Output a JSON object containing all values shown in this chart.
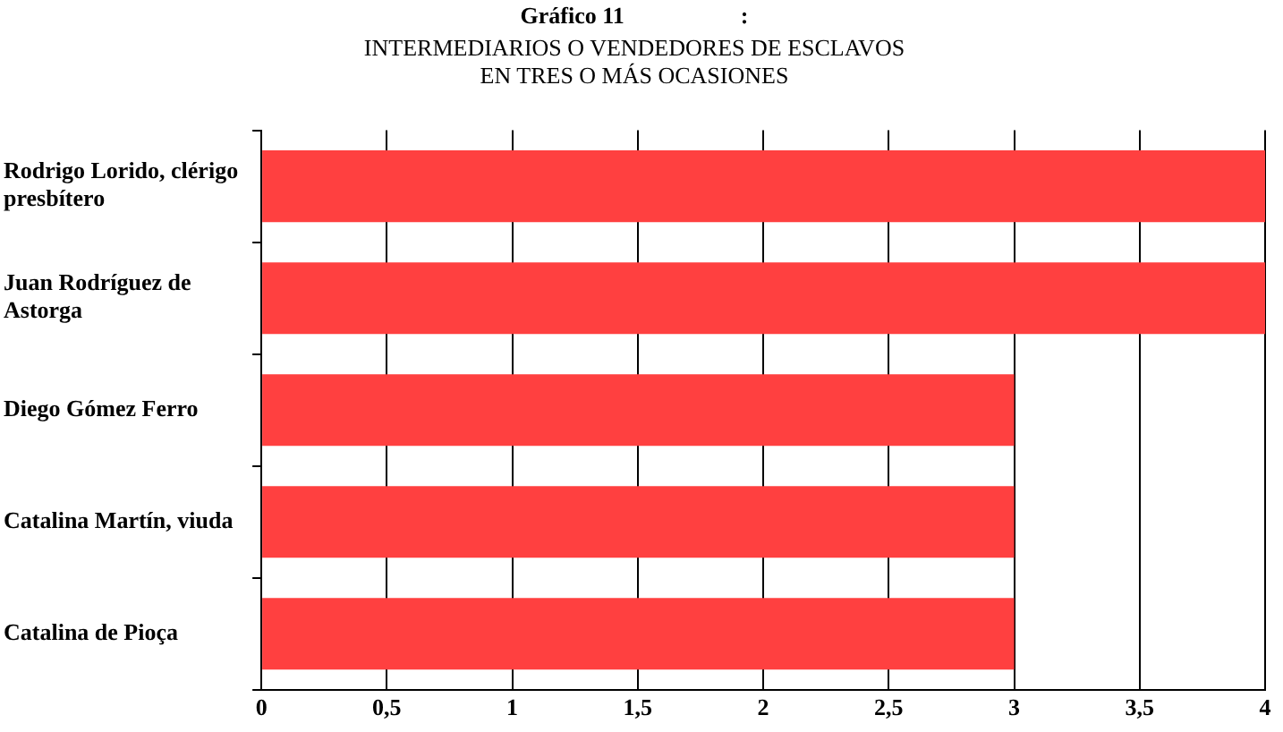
{
  "chart_data": {
    "type": "bar",
    "orientation": "horizontal",
    "title": "Gráfico 11                    :",
    "subtitle": "INTERMEDIARIOS O VENDEDORES DE ESCLAVOS EN TRES O MÁS OCASIONES",
    "categories": [
      "Rodrigo Lorido, clérigo presbítero",
      "Juan Rodríguez de Astorga",
      "Diego Gómez Ferro",
      "Catalina Martín, viuda",
      "Catalina de Pioça"
    ],
    "values": [
      4,
      4,
      3,
      3,
      3
    ],
    "color": "#ff4040",
    "xlim": [
      0,
      4
    ],
    "xticks": [
      0,
      {
        "value": 0.5,
        "label": "0,5"
      },
      1,
      {
        "value": 1.5,
        "label": "1,5"
      },
      2,
      {
        "value": 2.5,
        "label": "2,5"
      },
      3,
      {
        "value": 3.5,
        "label": "3,5"
      },
      4
    ],
    "grid": "x",
    "legend": false
  }
}
